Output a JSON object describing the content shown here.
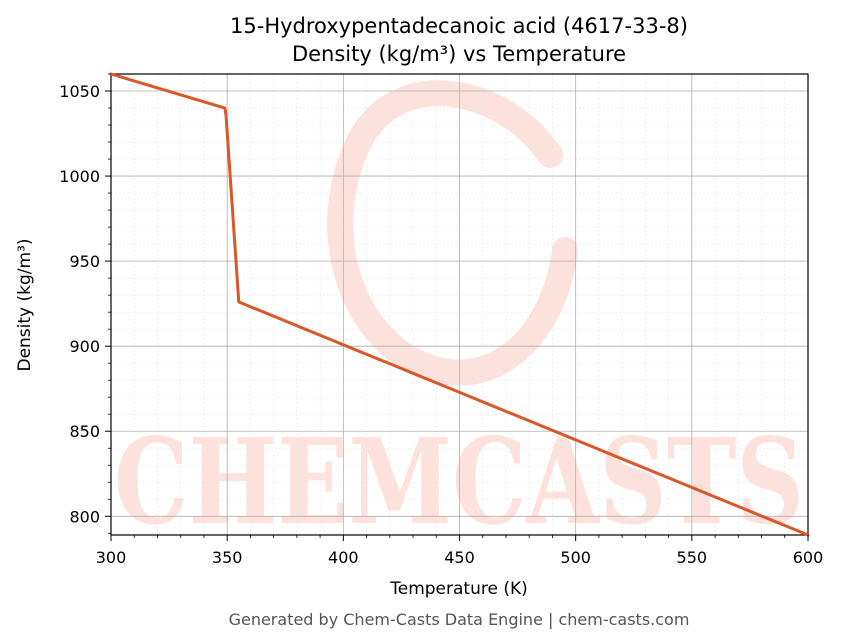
{
  "chart_data": {
    "type": "line",
    "title": "15-Hydroxypentadecanoic acid (4617-33-8)",
    "subtitle": "Density (kg/m³) vs Temperature",
    "xlabel": "Temperature (K)",
    "ylabel": "Density (kg/m³)",
    "xlim": [
      300,
      600
    ],
    "ylim": [
      789,
      1060
    ],
    "xticks": [
      300,
      350,
      400,
      450,
      500,
      550,
      600
    ],
    "yticks": [
      800,
      850,
      900,
      950,
      1000,
      1050
    ],
    "grid": true,
    "legend": "none",
    "series": [
      {
        "color": "#d9582a",
        "x": [
          300,
          349,
          349.5,
          355,
          600
        ],
        "y": [
          1060,
          1040,
          1036,
          926,
          789
        ]
      }
    ]
  },
  "watermark": {
    "text": "CHEMCASTS",
    "color": "#fde1dc"
  },
  "footer": "Generated by Chem-Casts Data Engine | chem-casts.com"
}
